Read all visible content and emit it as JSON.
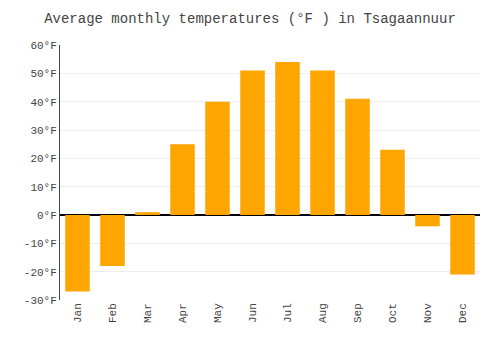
{
  "chart_data": {
    "type": "bar",
    "title": "Average monthly temperatures (°F ) in Tsagaannuur",
    "categories": [
      "Jan",
      "Feb",
      "Mar",
      "Apr",
      "May",
      "Jun",
      "Jul",
      "Aug",
      "Sep",
      "Oct",
      "Nov",
      "Dec"
    ],
    "values": [
      -27,
      -18,
      1,
      25,
      40,
      51,
      54,
      51,
      41,
      23,
      -4,
      -21
    ],
    "color": "#FFA500",
    "ylim": [
      -30,
      60
    ],
    "yticks": [
      {
        "value": -30,
        "label": "-30°F"
      },
      {
        "value": -20,
        "label": "-20°F"
      },
      {
        "value": -10,
        "label": "-10°F"
      },
      {
        "value": 0,
        "label": "0°F"
      },
      {
        "value": 10,
        "label": "10°F"
      },
      {
        "value": 20,
        "label": "20°F"
      },
      {
        "value": 30,
        "label": "30°F"
      },
      {
        "value": 40,
        "label": "40°F"
      },
      {
        "value": 50,
        "label": "50°F"
      },
      {
        "value": 60,
        "label": "60°F"
      }
    ],
    "grid": true
  }
}
